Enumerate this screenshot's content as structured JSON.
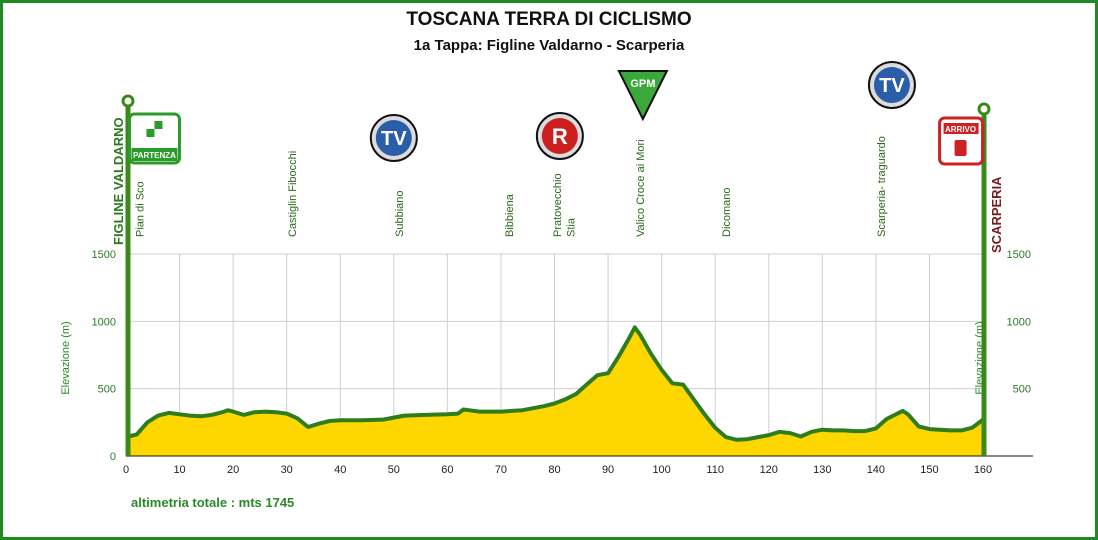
{
  "title": "TOSCANA TERRA DI CICLISMO",
  "subtitle": "1a Tappa: Figline Valdarno - Scarperia",
  "colors": {
    "frame": "#1f8a1f",
    "fill": "#ffd700",
    "line": "#2e7d1a",
    "tick": "#2a7a2a",
    "finish_label": "#7a1a1a"
  },
  "chart_data": {
    "type": "area",
    "xlabel": "",
    "ylabel": "Elevazione (m)",
    "xlim": [
      0,
      160
    ],
    "ylim": [
      0,
      1500
    ],
    "x_ticks": [
      0,
      10,
      20,
      30,
      40,
      50,
      60,
      70,
      80,
      90,
      100,
      110,
      120,
      130,
      140,
      150,
      160
    ],
    "y_ticks_left": [
      0,
      500,
      1000,
      1500
    ],
    "y_ticks_right": [
      500,
      1000,
      1500
    ],
    "grid": true,
    "series": [
      {
        "x": [
          0,
          2,
          4,
          6,
          8,
          10,
          12,
          14,
          16,
          18,
          19,
          20,
          22,
          24,
          26,
          28,
          30,
          32,
          34,
          36,
          38,
          40,
          44,
          48,
          52,
          56,
          60,
          62,
          63,
          64,
          66,
          68,
          70,
          72,
          74,
          76,
          78,
          80,
          82,
          84,
          86,
          88,
          90,
          92,
          94,
          95,
          96,
          98,
          100,
          102,
          104,
          106,
          108,
          110,
          112,
          114,
          116,
          118,
          120,
          122,
          124,
          126,
          128,
          130,
          132,
          134,
          136,
          138,
          140,
          142,
          144,
          145,
          146,
          148,
          150,
          152,
          154,
          156,
          158,
          160
        ],
        "y": [
          140,
          160,
          250,
          300,
          320,
          310,
          300,
          295,
          305,
          325,
          340,
          330,
          305,
          325,
          330,
          325,
          315,
          280,
          215,
          240,
          260,
          265,
          265,
          270,
          300,
          305,
          310,
          315,
          345,
          340,
          330,
          330,
          330,
          335,
          340,
          355,
          370,
          390,
          420,
          460,
          530,
          600,
          615,
          740,
          880,
          955,
          900,
          760,
          640,
          540,
          530,
          420,
          310,
          210,
          140,
          120,
          125,
          140,
          155,
          180,
          170,
          145,
          180,
          195,
          190,
          190,
          185,
          185,
          205,
          275,
          315,
          335,
          310,
          220,
          200,
          195,
          190,
          190,
          210,
          270
        ]
      }
    ],
    "locations": [
      {
        "km": 2.5,
        "name": "Pian di Sco"
      },
      {
        "km": 31,
        "name": "Castiglin Fibocchi"
      },
      {
        "km": 51,
        "name": "Subbiano"
      },
      {
        "km": 71.5,
        "name": "Bibbiena"
      },
      {
        "km": 80.5,
        "name": "Pratovecchio"
      },
      {
        "km": 83,
        "name": "Stia"
      },
      {
        "km": 96,
        "name": "Valico Croce ai Mori"
      },
      {
        "km": 112,
        "name": "Dicomano"
      },
      {
        "km": 141,
        "name": "Scarperia-  traguardo"
      }
    ],
    "start_label": "FIGLINE VALDARNO",
    "finish_label": "SCARPERIA",
    "markers": [
      {
        "type": "start",
        "km": 5.5,
        "label": "PARTENZA"
      },
      {
        "type": "tv",
        "km": 50,
        "label": "TV"
      },
      {
        "type": "refuel",
        "km": 81,
        "label": "R"
      },
      {
        "type": "gpm",
        "km": 96.5,
        "label": "GPM"
      },
      {
        "type": "tv",
        "km": 143,
        "label": "TV"
      },
      {
        "type": "finish",
        "km": 156,
        "label": "ARRIVO"
      }
    ]
  },
  "footer": {
    "total_climb": "altimetria totale : mts  1745"
  }
}
